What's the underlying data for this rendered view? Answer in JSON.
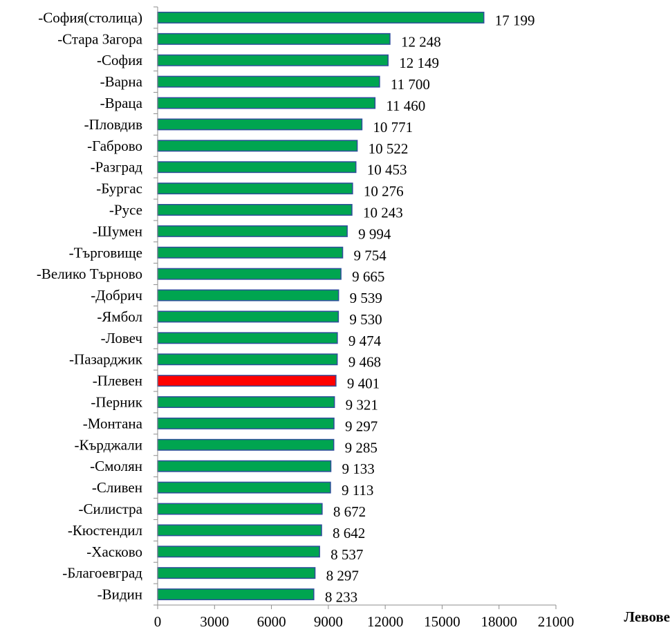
{
  "chart_data": {
    "type": "bar",
    "orientation": "horizontal",
    "categories": [
      "-София(столица)",
      "-Стара Загора",
      "-София",
      "-Варна",
      "-Враца",
      "-Пловдив",
      "-Габрово",
      "-Разград",
      "-Бургас",
      "-Русе",
      "-Шумен",
      "-Търговище",
      "-Велико Търново",
      "-Добрич",
      "-Ямбол",
      "-Ловеч",
      "-Пазарджик",
      "-Плевен",
      "-Перник",
      "-Монтана",
      "-Кърджали",
      "-Смолян",
      "-Сливен",
      "-Силистра",
      "-Кюстендил",
      "-Хасково",
      "-Благоевград",
      "-Видин"
    ],
    "values": [
      17199,
      12248,
      12149,
      11700,
      11460,
      10771,
      10522,
      10453,
      10276,
      10243,
      9994,
      9754,
      9665,
      9539,
      9530,
      9474,
      9468,
      9401,
      9321,
      9297,
      9285,
      9133,
      9113,
      8672,
      8642,
      8537,
      8297,
      8233
    ],
    "value_labels": [
      "17 199",
      "12 248",
      "12 149",
      "11 700",
      "11 460",
      "10 771",
      "10 522",
      "10 453",
      "10 276",
      "10 243",
      "9 994",
      "9 754",
      "9 665",
      "9 539",
      "9 530",
      "9 474",
      "9 468",
      "9 401",
      "9 321",
      "9 297",
      "9 285",
      "9 133",
      "9 113",
      "8 672",
      "8 642",
      "8 537",
      "8 297",
      "8 233"
    ],
    "highlight_index": 17,
    "xlabel": "Левове",
    "ylabel": "",
    "title": "",
    "xlim": [
      0,
      21000
    ],
    "xticks": [
      0,
      3000,
      6000,
      9000,
      12000,
      15000,
      18000,
      21000
    ],
    "colors": {
      "bar_fill": "#00A550",
      "bar_stroke": "#2E4D9B",
      "highlight_fill": "#FF0000",
      "axis": "#8C8C8C"
    },
    "grid": false,
    "legend": "none"
  }
}
